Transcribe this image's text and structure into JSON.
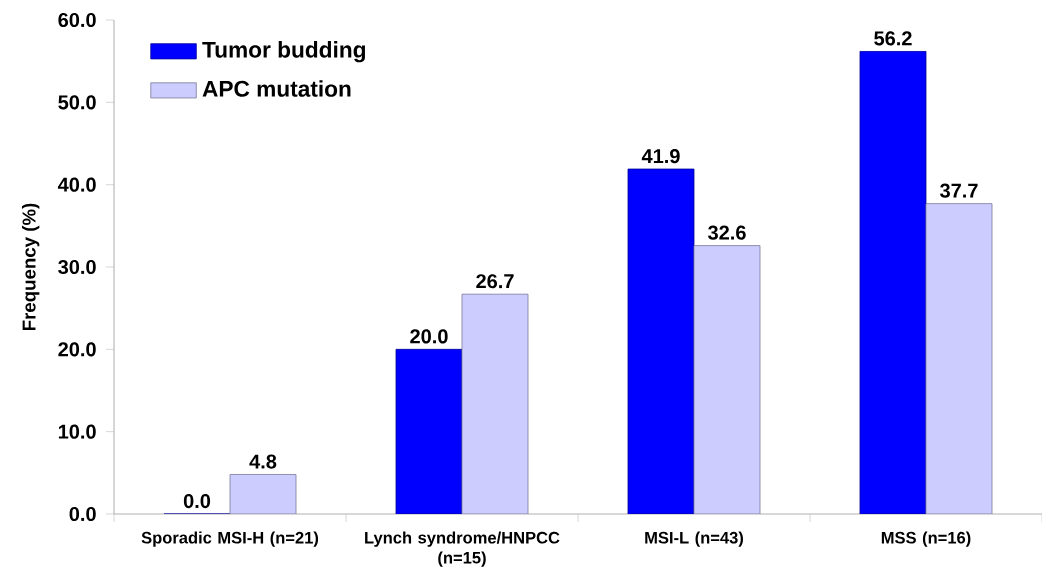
{
  "chart_data": {
    "type": "bar",
    "ylabel": "Frequency (%)",
    "categories": [
      "Sporadic MSI-H (n=21)",
      "Lynch syndrome/HNPCC (n=15)",
      "MSI-L (n=43)",
      "MSS (n=16)"
    ],
    "series": [
      {
        "name": "Tumor budding",
        "color": "#0000ff",
        "values": [
          0.0,
          20.0,
          41.9,
          56.2
        ],
        "value_labels": [
          "0.0",
          "20.0",
          "41.9",
          "56.2"
        ]
      },
      {
        "name": "APC mutation",
        "color": "#ccccff",
        "values": [
          4.8,
          26.7,
          32.6,
          37.7
        ],
        "value_labels": [
          "4.8",
          "26.7",
          "32.6",
          "37.7"
        ]
      }
    ],
    "ylim": [
      0,
      60
    ],
    "yticks": [
      {
        "value": 0,
        "label": "0.0"
      },
      {
        "value": 10,
        "label": "10.0"
      },
      {
        "value": 20,
        "label": "20.0"
      },
      {
        "value": 30,
        "label": "30.0"
      },
      {
        "value": 40,
        "label": "40.0"
      },
      {
        "value": 50,
        "label": "50.0"
      },
      {
        "value": 60,
        "label": "60.0"
      }
    ],
    "legend": "top left"
  }
}
